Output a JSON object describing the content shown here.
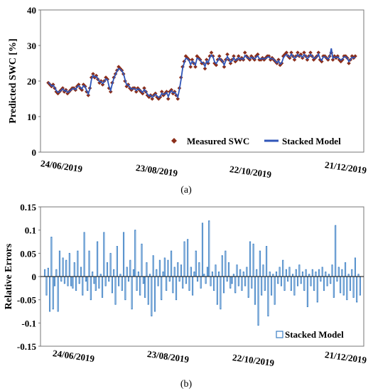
{
  "chart_data": [
    {
      "type": "line",
      "panel_label": "(a)",
      "ylabel": "Predicted SWC [%]",
      "ylim": [
        0,
        40
      ],
      "yticks": [
        0,
        10,
        20,
        30,
        40
      ],
      "x_tick_labels": [
        "24/06/2019",
        "23/08/2019",
        "22/10/2019",
        "21/12/2019"
      ],
      "grid": false,
      "legend_placement": "bottom-right",
      "series": [
        {
          "name": "Measured SWC",
          "style": "markers",
          "color": "#8b2e1a",
          "values": [
            19.5,
            19,
            18.5,
            19,
            18,
            17,
            16.5,
            17,
            17.5,
            18,
            17,
            17.5,
            16.5,
            17,
            17.5,
            18,
            18,
            17.5,
            18.5,
            19,
            18,
            17.5,
            19,
            18.5,
            17,
            16,
            18,
            21,
            22,
            21,
            21.5,
            20.5,
            19.5,
            20,
            19,
            20,
            21,
            20.5,
            18,
            17,
            19.5,
            21,
            22,
            23,
            24,
            23.5,
            23,
            22,
            20,
            18.5,
            19,
            18,
            17.5,
            18,
            18,
            17,
            18,
            17.5,
            17,
            16.5,
            18,
            17,
            16,
            15.5,
            16,
            15,
            16,
            16.5,
            15.5,
            15,
            15.5,
            17,
            16,
            16.5,
            17,
            15,
            17,
            17.5,
            16.5,
            17,
            16,
            15,
            18,
            21,
            24,
            25.5,
            27,
            26.5,
            26,
            24,
            26,
            25,
            24,
            27,
            26.5,
            26,
            25,
            25,
            23.5,
            26,
            25,
            27,
            28,
            27,
            25,
            24.5,
            26,
            27,
            26,
            25.5,
            24,
            26,
            27.5,
            26,
            25,
            26,
            27,
            25.5,
            26,
            27,
            26,
            26.5,
            26,
            28,
            27,
            26.5,
            26,
            27,
            26.5,
            26,
            27,
            27.5,
            26,
            26,
            26.5,
            26,
            26.5,
            27,
            27,
            26,
            26.5,
            26,
            25.5,
            25,
            26,
            24.5,
            25,
            27,
            27.5,
            28,
            27,
            26.5,
            28,
            27,
            26,
            27,
            28,
            27,
            27.5,
            26.5,
            28,
            27,
            26,
            27,
            28,
            27,
            26,
            26.5,
            27,
            28,
            26,
            25.5,
            27,
            27,
            26.5,
            26,
            27,
            28,
            26,
            27,
            26.5,
            27,
            26,
            25.5,
            26,
            27,
            27,
            26.5,
            25,
            26,
            27,
            26.5,
            27
          ]
        },
        {
          "name": "Stacked Model",
          "style": "line",
          "color": "#2f55b8",
          "values": [
            19.6,
            19.2,
            18.6,
            18.8,
            18.2,
            17.3,
            16.8,
            17,
            17.4,
            17.8,
            17.2,
            17.4,
            16.8,
            17,
            17.4,
            17.8,
            17.9,
            17.6,
            18.3,
            18.7,
            18.2,
            17.8,
            18.7,
            18.4,
            17.3,
            16.4,
            17.8,
            20.5,
            21.6,
            21.2,
            21.3,
            20.6,
            19.8,
            19.9,
            19.3,
            19.8,
            20.6,
            20.4,
            18.5,
            17.4,
            19.2,
            20.8,
            21.8,
            22.8,
            23.5,
            23.3,
            22.9,
            22.1,
            20.4,
            18.9,
            18.9,
            18.2,
            17.7,
            17.9,
            17.9,
            17.3,
            17.8,
            17.6,
            17.2,
            16.8,
            17.6,
            17.1,
            16.3,
            15.8,
            16,
            15.4,
            15.9,
            16.3,
            15.8,
            15.4,
            15.6,
            16.6,
            16.2,
            16.4,
            16.8,
            15.6,
            16.7,
            17.3,
            16.7,
            16.9,
            16.3,
            15.5,
            17.6,
            20.4,
            23.5,
            25.1,
            26.4,
            26.3,
            25.8,
            24.6,
            25.6,
            25.1,
            24.5,
            26.4,
            26.3,
            25.9,
            25.2,
            25.1,
            24.1,
            25.6,
            25.2,
            26.5,
            27.3,
            26.8,
            25.4,
            24.9,
            25.7,
            26.5,
            26,
            25.6,
            24.5,
            25.7,
            26.9,
            26.1,
            25.3,
            25.8,
            26.6,
            25.8,
            26,
            26.6,
            26.1,
            26.4,
            26.1,
            27.2,
            26.8,
            26.5,
            26.2,
            26.7,
            26.5,
            26.2,
            26.7,
            27.1,
            26.3,
            26.2,
            26.4,
            26.2,
            26.4,
            26.7,
            26.8,
            26.2,
            26.4,
            26.1,
            25.6,
            25.1,
            25.7,
            24.8,
            25.1,
            26.5,
            27.1,
            27.5,
            27,
            26.7,
            27.6,
            27,
            26.4,
            26.8,
            27.5,
            27,
            27.2,
            26.7,
            27.5,
            27,
            26.3,
            26.8,
            27.5,
            27,
            26.4,
            26.5,
            26.9,
            27.6,
            26.3,
            25.8,
            26.8,
            26.8,
            26.5,
            26.2,
            26.8,
            29.2,
            26.4,
            26.8,
            26.6,
            26.8,
            26.3,
            25.9,
            26.2,
            26.8,
            26.8,
            26.5,
            25.5,
            26,
            26.7,
            26.5,
            26.8
          ]
        }
      ]
    },
    {
      "type": "bar",
      "panel_label": "(b)",
      "ylabel": "Relative Errors",
      "ylim": [
        -0.15,
        0.15
      ],
      "yticks": [
        "0.15",
        "0.1",
        "0.05",
        "0",
        "-0.05",
        "-0.1",
        "-0.15"
      ],
      "x_tick_labels": [
        "24/06/2019",
        "23/08/2019",
        "22/10/2019",
        "21/12/2019"
      ],
      "grid": false,
      "legend_placement": "bottom-right",
      "series": [
        {
          "name": "Stacked Model",
          "style": "hollow-bar",
          "color": "#3b7fc4",
          "values": [
            0.015,
            -0.04,
            0.018,
            -0.075,
            0.085,
            -0.07,
            -0.02,
            0.015,
            -0.075,
            0.055,
            -0.01,
            0.04,
            -0.015,
            0.035,
            -0.02,
            0.05,
            -0.02,
            -0.025,
            0.03,
            -0.03,
            0.055,
            -0.015,
            0.02,
            -0.04,
            0.095,
            -0.01,
            -0.03,
            0.055,
            -0.05,
            0.01,
            -0.015,
            -0.03,
            0.075,
            -0.025,
            0.005,
            -0.045,
            0.095,
            -0.02,
            0.03,
            -0.01,
            0.05,
            -0.035,
            0.015,
            -0.06,
            0.065,
            -0.02,
            0.005,
            -0.03,
            0.095,
            -0.05,
            0.02,
            -0.01,
            0.035,
            -0.07,
            0.015,
            0.1,
            -0.03,
            0.01,
            -0.04,
            0.07,
            -0.015,
            -0.045,
            0.03,
            -0.06,
            0.005,
            -0.085,
            0.045,
            -0.075,
            0.015,
            -0.02,
            0.035,
            -0.05,
            0.01,
            0.04,
            -0.03,
            0.035,
            -0.01,
            0.055,
            -0.035,
            0.02,
            -0.05,
            0.03,
            -0.01,
            0.025,
            -0.025,
            0.075,
            -0.015,
            0.08,
            -0.03,
            0.02,
            -0.04,
            0.01,
            0.055,
            -0.01,
            0.03,
            -0.025,
            0.115,
            0.005,
            -0.015,
            0.02,
            0.12,
            -0.02,
            0.01,
            -0.03,
            0.025,
            -0.06,
            0.01,
            -0.07,
            0.045,
            -0.035,
            0.055,
            -0.01,
            0.03,
            -0.025,
            -0.015,
            0.005,
            -0.035,
            0.025,
            -0.02,
            0.015,
            -0.03,
            0.01,
            -0.02,
            0.02,
            -0.045,
            0.075,
            -0.025,
            0.07,
            -0.06,
            0.015,
            -0.105,
            0.055,
            -0.04,
            0.025,
            -0.03,
            0.065,
            -0.085,
            0.01,
            -0.04,
            0.005,
            -0.06,
            0.01,
            -0.015,
            0.02,
            -0.02,
            0.035,
            -0.03,
            0.015,
            -0.01,
            0.02,
            -0.03,
            0.005,
            -0.04,
            0.015,
            -0.02,
            0.025,
            -0.015,
            0.01,
            -0.03,
            0.015,
            -0.065,
            0.005,
            -0.02,
            0.015,
            -0.03,
            0.01,
            -0.055,
            0.015,
            -0.01,
            0.02,
            -0.03,
            0.01,
            -0.02,
            0.005,
            -0.015,
            0.025,
            -0.045,
            0.11,
            -0.01,
            0.02,
            -0.035,
            0.015,
            -0.04,
            0.03,
            -0.05,
            0.005,
            -0.03,
            0.015,
            -0.045,
            0.04,
            -0.055,
            0.005,
            -0.04
          ]
        }
      ]
    }
  ]
}
